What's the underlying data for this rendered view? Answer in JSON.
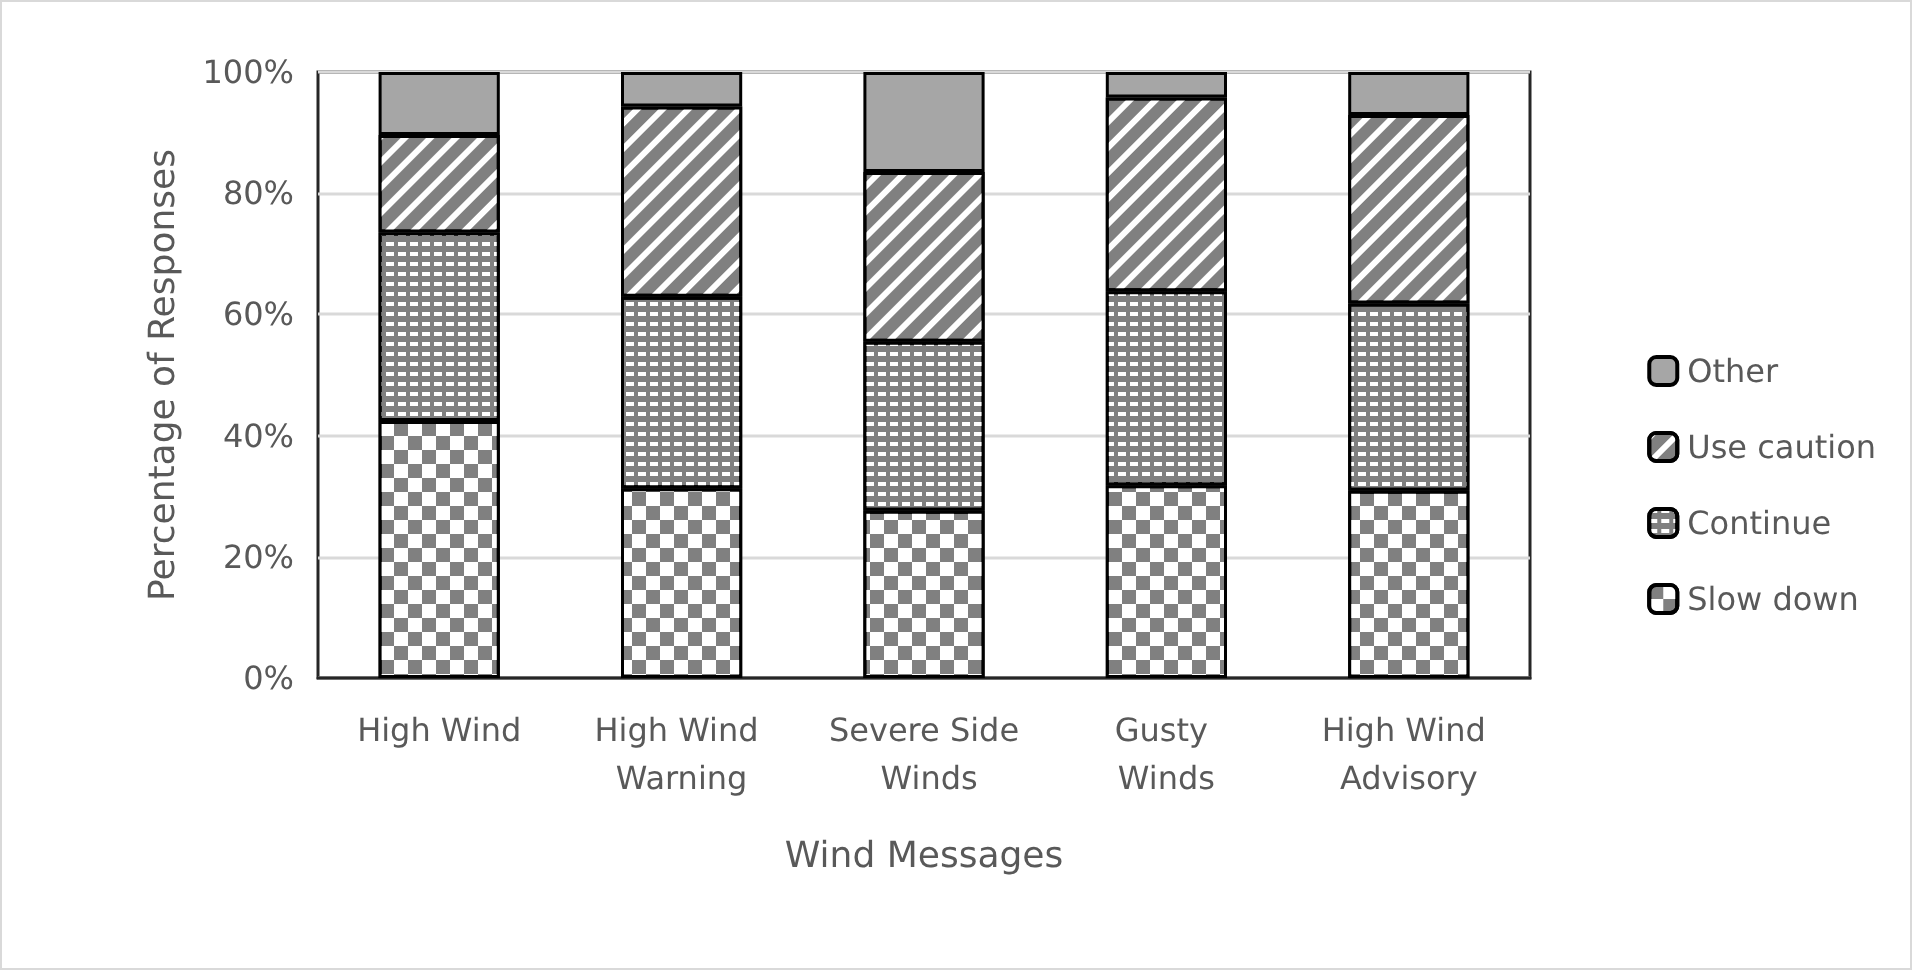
{
  "chart_data": {
    "type": "bar",
    "stacked": true,
    "xlabel": "Wind Messages",
    "ylabel": "Percentage of Responses",
    "categories": [
      "High Wind",
      "High Wind Warning",
      "Severe Side Winds",
      "Gusty Winds",
      "High Wind Advisory"
    ],
    "series": [
      {
        "name": "Slow down",
        "color": "#808080",
        "values": [
          42.4,
          31.3,
          27.6,
          31.8,
          30.9
        ]
      },
      {
        "name": "Continue",
        "color": "#808080",
        "values": [
          31.1,
          31.6,
          27.9,
          32.0,
          30.9
        ]
      },
      {
        "name": "Use caution",
        "color": "#808080",
        "values": [
          16.1,
          31.4,
          28.0,
          32.0,
          31.1
        ]
      },
      {
        "name": "Other",
        "color": "#a6a6a6",
        "values": [
          10.4,
          5.7,
          16.5,
          4.2,
          7.1
        ]
      }
    ],
    "ylim": [
      0,
      100
    ],
    "yticks": [
      {
        "value": 0,
        "label": "0%"
      },
      {
        "value": 20,
        "label": "20%"
      },
      {
        "value": 40,
        "label": "40%"
      },
      {
        "value": 60,
        "label": "60%"
      },
      {
        "value": 80,
        "label": "80%"
      },
      {
        "value": 100,
        "label": "100%"
      }
    ],
    "grid": "y",
    "legend": "right"
  }
}
